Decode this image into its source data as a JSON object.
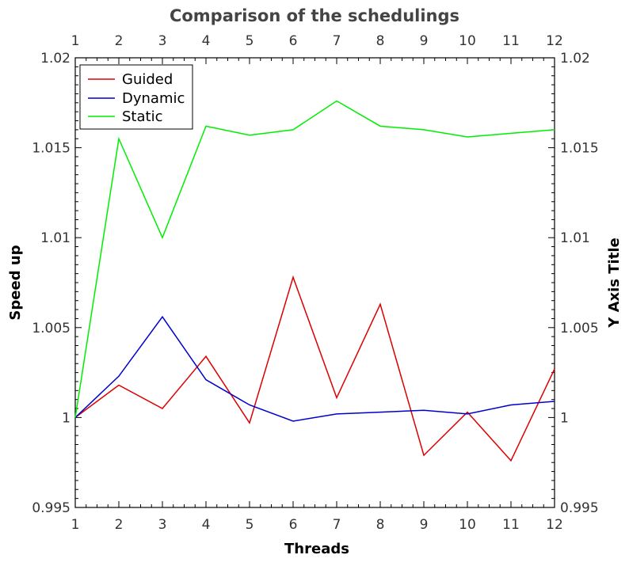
{
  "chart_data": {
    "type": "line",
    "title": "Comparison of the schedulings",
    "xlabel": "Threads",
    "ylabel": "Speed up",
    "y2label": "Y Axis Title",
    "x": [
      1,
      2,
      3,
      4,
      5,
      6,
      7,
      8,
      9,
      10,
      11,
      12
    ],
    "x_ticks": [
      "1",
      "2",
      "3",
      "4",
      "5",
      "6",
      "7",
      "8",
      "9",
      "10",
      "11",
      "12"
    ],
    "xlim": [
      1,
      12
    ],
    "ylim": [
      0.995,
      1.02
    ],
    "y_ticks": [
      "0.995",
      "1",
      "1.005",
      "1.01",
      "1.015",
      "1.02"
    ],
    "y_tick_values": [
      0.995,
      1.0,
      1.005,
      1.01,
      1.015,
      1.02
    ],
    "grid": false,
    "legend_position": "top-left",
    "series": [
      {
        "name": "Guided",
        "color": "#dd0000",
        "values": [
          1.0,
          1.0018,
          1.0005,
          1.0034,
          0.9997,
          1.0078,
          1.0011,
          1.0063,
          0.9979,
          1.0003,
          0.9976,
          1.0027
        ]
      },
      {
        "name": "Dynamic",
        "color": "#0000cc",
        "values": [
          1.0,
          1.0023,
          1.0056,
          1.0021,
          1.0007,
          0.9998,
          1.0002,
          1.0003,
          1.0004,
          1.0002,
          1.0007,
          1.0009
        ]
      },
      {
        "name": "Static",
        "color": "#00ee00",
        "values": [
          1.0,
          1.0155,
          1.01,
          1.0162,
          1.0157,
          1.016,
          1.0176,
          1.0162,
          1.016,
          1.0156,
          1.0158,
          1.016
        ]
      }
    ]
  }
}
